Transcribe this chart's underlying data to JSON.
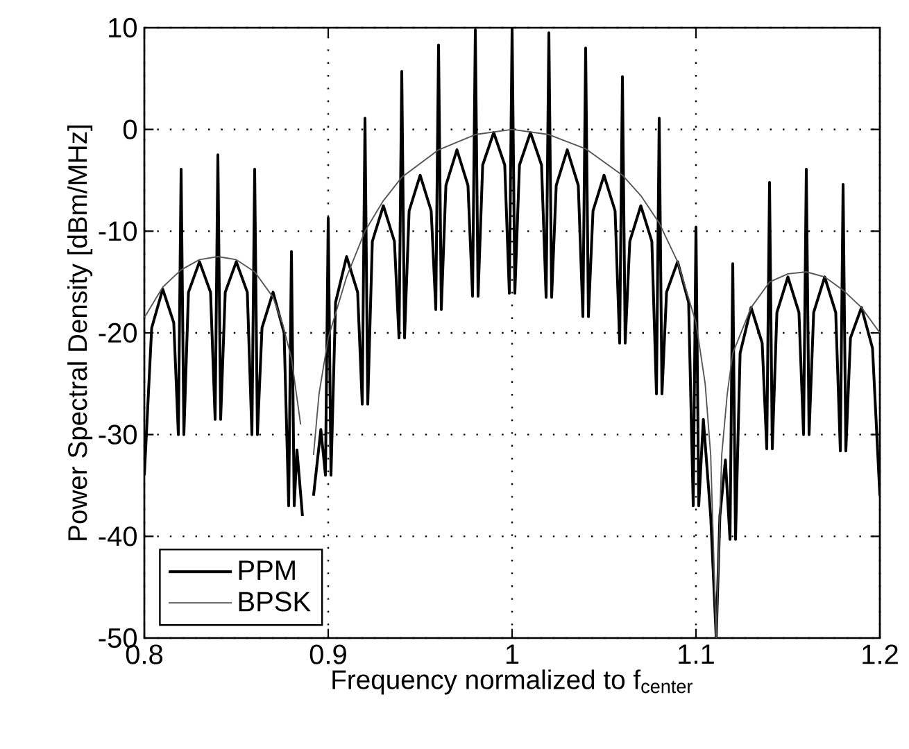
{
  "chart_data": {
    "type": "line",
    "xlabel": "Frequency normalized to f$_{center}$",
    "ylabel": "Power Spectral Density [dBm/MHz]",
    "xlim": [
      0.8,
      1.2
    ],
    "ylim": [
      -50,
      10
    ],
    "xticks": [
      0.8,
      0.9,
      1,
      1.1,
      1.2
    ],
    "yticks": [
      -50,
      -40,
      -30,
      -20,
      -10,
      0,
      10
    ],
    "grid": true,
    "legend": "bottom left",
    "series": [
      {
        "name": "PPM",
        "color": "#000000",
        "x": [
          0.8,
          0.804,
          0.81,
          0.816,
          0.8185,
          0.82,
          0.8215,
          0.824,
          0.83,
          0.836,
          0.8385,
          0.84,
          0.8415,
          0.844,
          0.85,
          0.856,
          0.8585,
          0.86,
          0.8615,
          0.864,
          0.87,
          0.876,
          0.8785,
          0.88,
          0.8815,
          0.883,
          0.886,
          0.889,
          0.892,
          0.896,
          0.8985,
          0.9,
          0.9015,
          0.904,
          0.91,
          0.916,
          0.9185,
          0.92,
          0.9215,
          0.924,
          0.93,
          0.936,
          0.9385,
          0.94,
          0.9415,
          0.944,
          0.95,
          0.956,
          0.9585,
          0.96,
          0.9615,
          0.964,
          0.97,
          0.976,
          0.9785,
          0.98,
          0.9815,
          0.984,
          0.99,
          0.996,
          0.9985,
          1.0,
          1.0015,
          1.004,
          1.01,
          1.016,
          1.0185,
          1.02,
          1.0215,
          1.024,
          1.03,
          1.036,
          1.0385,
          1.04,
          1.0415,
          1.044,
          1.05,
          1.056,
          1.0585,
          1.06,
          1.0615,
          1.064,
          1.07,
          1.076,
          1.0785,
          1.08,
          1.0815,
          1.084,
          1.09,
          1.096,
          1.0985,
          1.1,
          1.1015,
          1.104,
          1.108,
          1.111,
          1.113,
          1.116,
          1.1185,
          1.12,
          1.1215,
          1.124,
          1.13,
          1.136,
          1.1385,
          1.14,
          1.1415,
          1.144,
          1.15,
          1.156,
          1.1585,
          1.16,
          1.1615,
          1.164,
          1.17,
          1.176,
          1.1785,
          1.18,
          1.1815,
          1.184,
          1.19,
          1.196,
          1.2
        ],
        "values": [
          -34,
          -19.5,
          -15.7,
          -19,
          -30,
          -3.9,
          -30,
          -16,
          -13,
          -16,
          -28.5,
          -2.5,
          -28.5,
          -16,
          -13,
          -16,
          -30,
          -3.9,
          -30,
          -19.5,
          -16,
          -20,
          -37,
          -12,
          -37,
          -31.5,
          -38,
          null,
          -36,
          -29.5,
          -34,
          -8.7,
          -34,
          -17,
          -12.5,
          -16,
          -27,
          1.1,
          -27,
          -11,
          -7.5,
          -11,
          -20.5,
          5.7,
          -20.5,
          -8,
          -4.5,
          -8,
          -17.7,
          8.3,
          -17.7,
          -5.5,
          -2,
          -5.5,
          -16.4,
          9.8,
          -16.4,
          -3.5,
          -0.3,
          -3.5,
          -16.1,
          10,
          -16.1,
          -3.5,
          -0.3,
          -3.5,
          -16.5,
          9.5,
          -16.5,
          -5.5,
          -2,
          -5.5,
          -18.4,
          8,
          -18.4,
          -8,
          -4.5,
          -8,
          -21,
          5.2,
          -21,
          -11,
          -7.5,
          -11,
          -26,
          1.1,
          -26,
          -16,
          -13,
          -17,
          -37,
          -9.6,
          -37,
          -28.5,
          -38,
          -50,
          -38,
          -32.5,
          -40.3,
          -13.2,
          -40.3,
          -22,
          -17.5,
          -21,
          -31.4,
          -5.2,
          -31.4,
          -18,
          -14.5,
          -18,
          -30,
          -3.9,
          -30,
          -18,
          -14.5,
          -18,
          -31.6,
          -5.4,
          -31.6,
          -20.5,
          -17.5,
          -21.5,
          -36
        ]
      },
      {
        "name": "BPSK",
        "color": "#555555",
        "x": [
          0.8,
          0.81,
          0.82,
          0.83,
          0.84,
          0.85,
          0.86,
          0.87,
          0.875,
          0.88,
          0.885,
          0.889,
          0.892,
          0.895,
          0.9,
          0.91,
          0.92,
          0.93,
          0.94,
          0.96,
          0.98,
          1.0,
          1.02,
          1.04,
          1.06,
          1.07,
          1.08,
          1.09,
          1.1,
          1.105,
          1.108,
          1.111,
          1.114,
          1.117,
          1.12,
          1.13,
          1.14,
          1.15,
          1.16,
          1.17,
          1.18,
          1.19,
          1.2
        ],
        "values": [
          -18.5,
          -15.5,
          -13.8,
          -12.8,
          -12.5,
          -12.8,
          -14,
          -16.5,
          -19,
          -22.5,
          -29,
          null,
          -32,
          -26,
          -20.5,
          -14.5,
          -10,
          -7,
          -4.7,
          -2,
          -0.5,
          0,
          -0.5,
          -1.9,
          -4.5,
          -6.5,
          -9.2,
          -13,
          -19,
          -25,
          -32,
          -50,
          -32,
          -26,
          -22,
          -17.5,
          -15,
          -14.2,
          -14,
          -14.5,
          -15.8,
          -17.5,
          -20
        ]
      }
    ]
  }
}
